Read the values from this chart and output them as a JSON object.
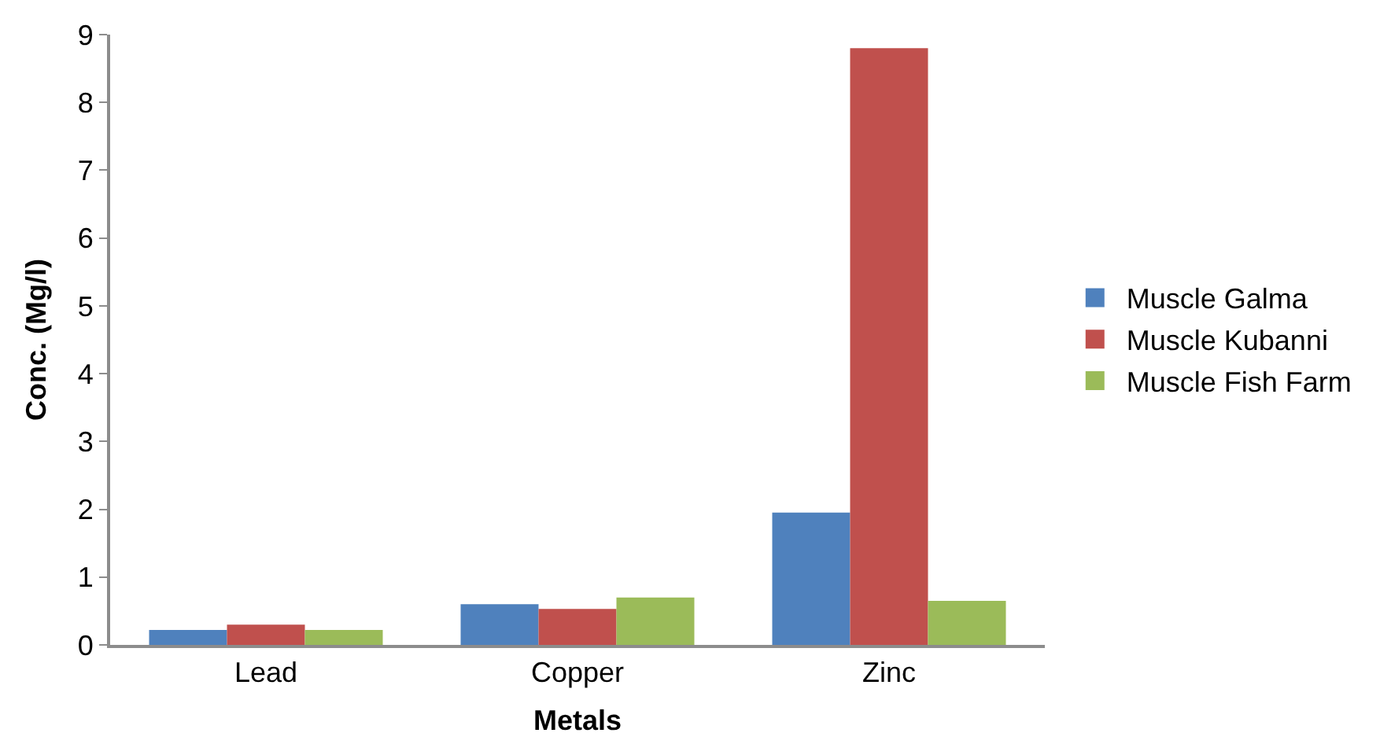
{
  "chart_data": {
    "type": "bar",
    "xlabel": "Metals",
    "ylabel": "Conc. (Mg/l)",
    "categories": [
      "Lead",
      "Copper",
      "Zinc"
    ],
    "series": [
      {
        "name": "Muscle Galma",
        "color": "#4f81bd",
        "values": [
          0.22,
          0.6,
          1.95
        ]
      },
      {
        "name": "Muscle Kubanni",
        "color": "#c0504d",
        "values": [
          0.3,
          0.53,
          8.8
        ]
      },
      {
        "name": "Muscle Fish Farm",
        "color": "#9bbb59",
        "values": [
          0.22,
          0.7,
          0.65
        ]
      }
    ],
    "ylim": [
      0,
      9
    ],
    "yticks": [
      0,
      1,
      2,
      3,
      4,
      5,
      6,
      7,
      8,
      9
    ],
    "legend": "right"
  }
}
